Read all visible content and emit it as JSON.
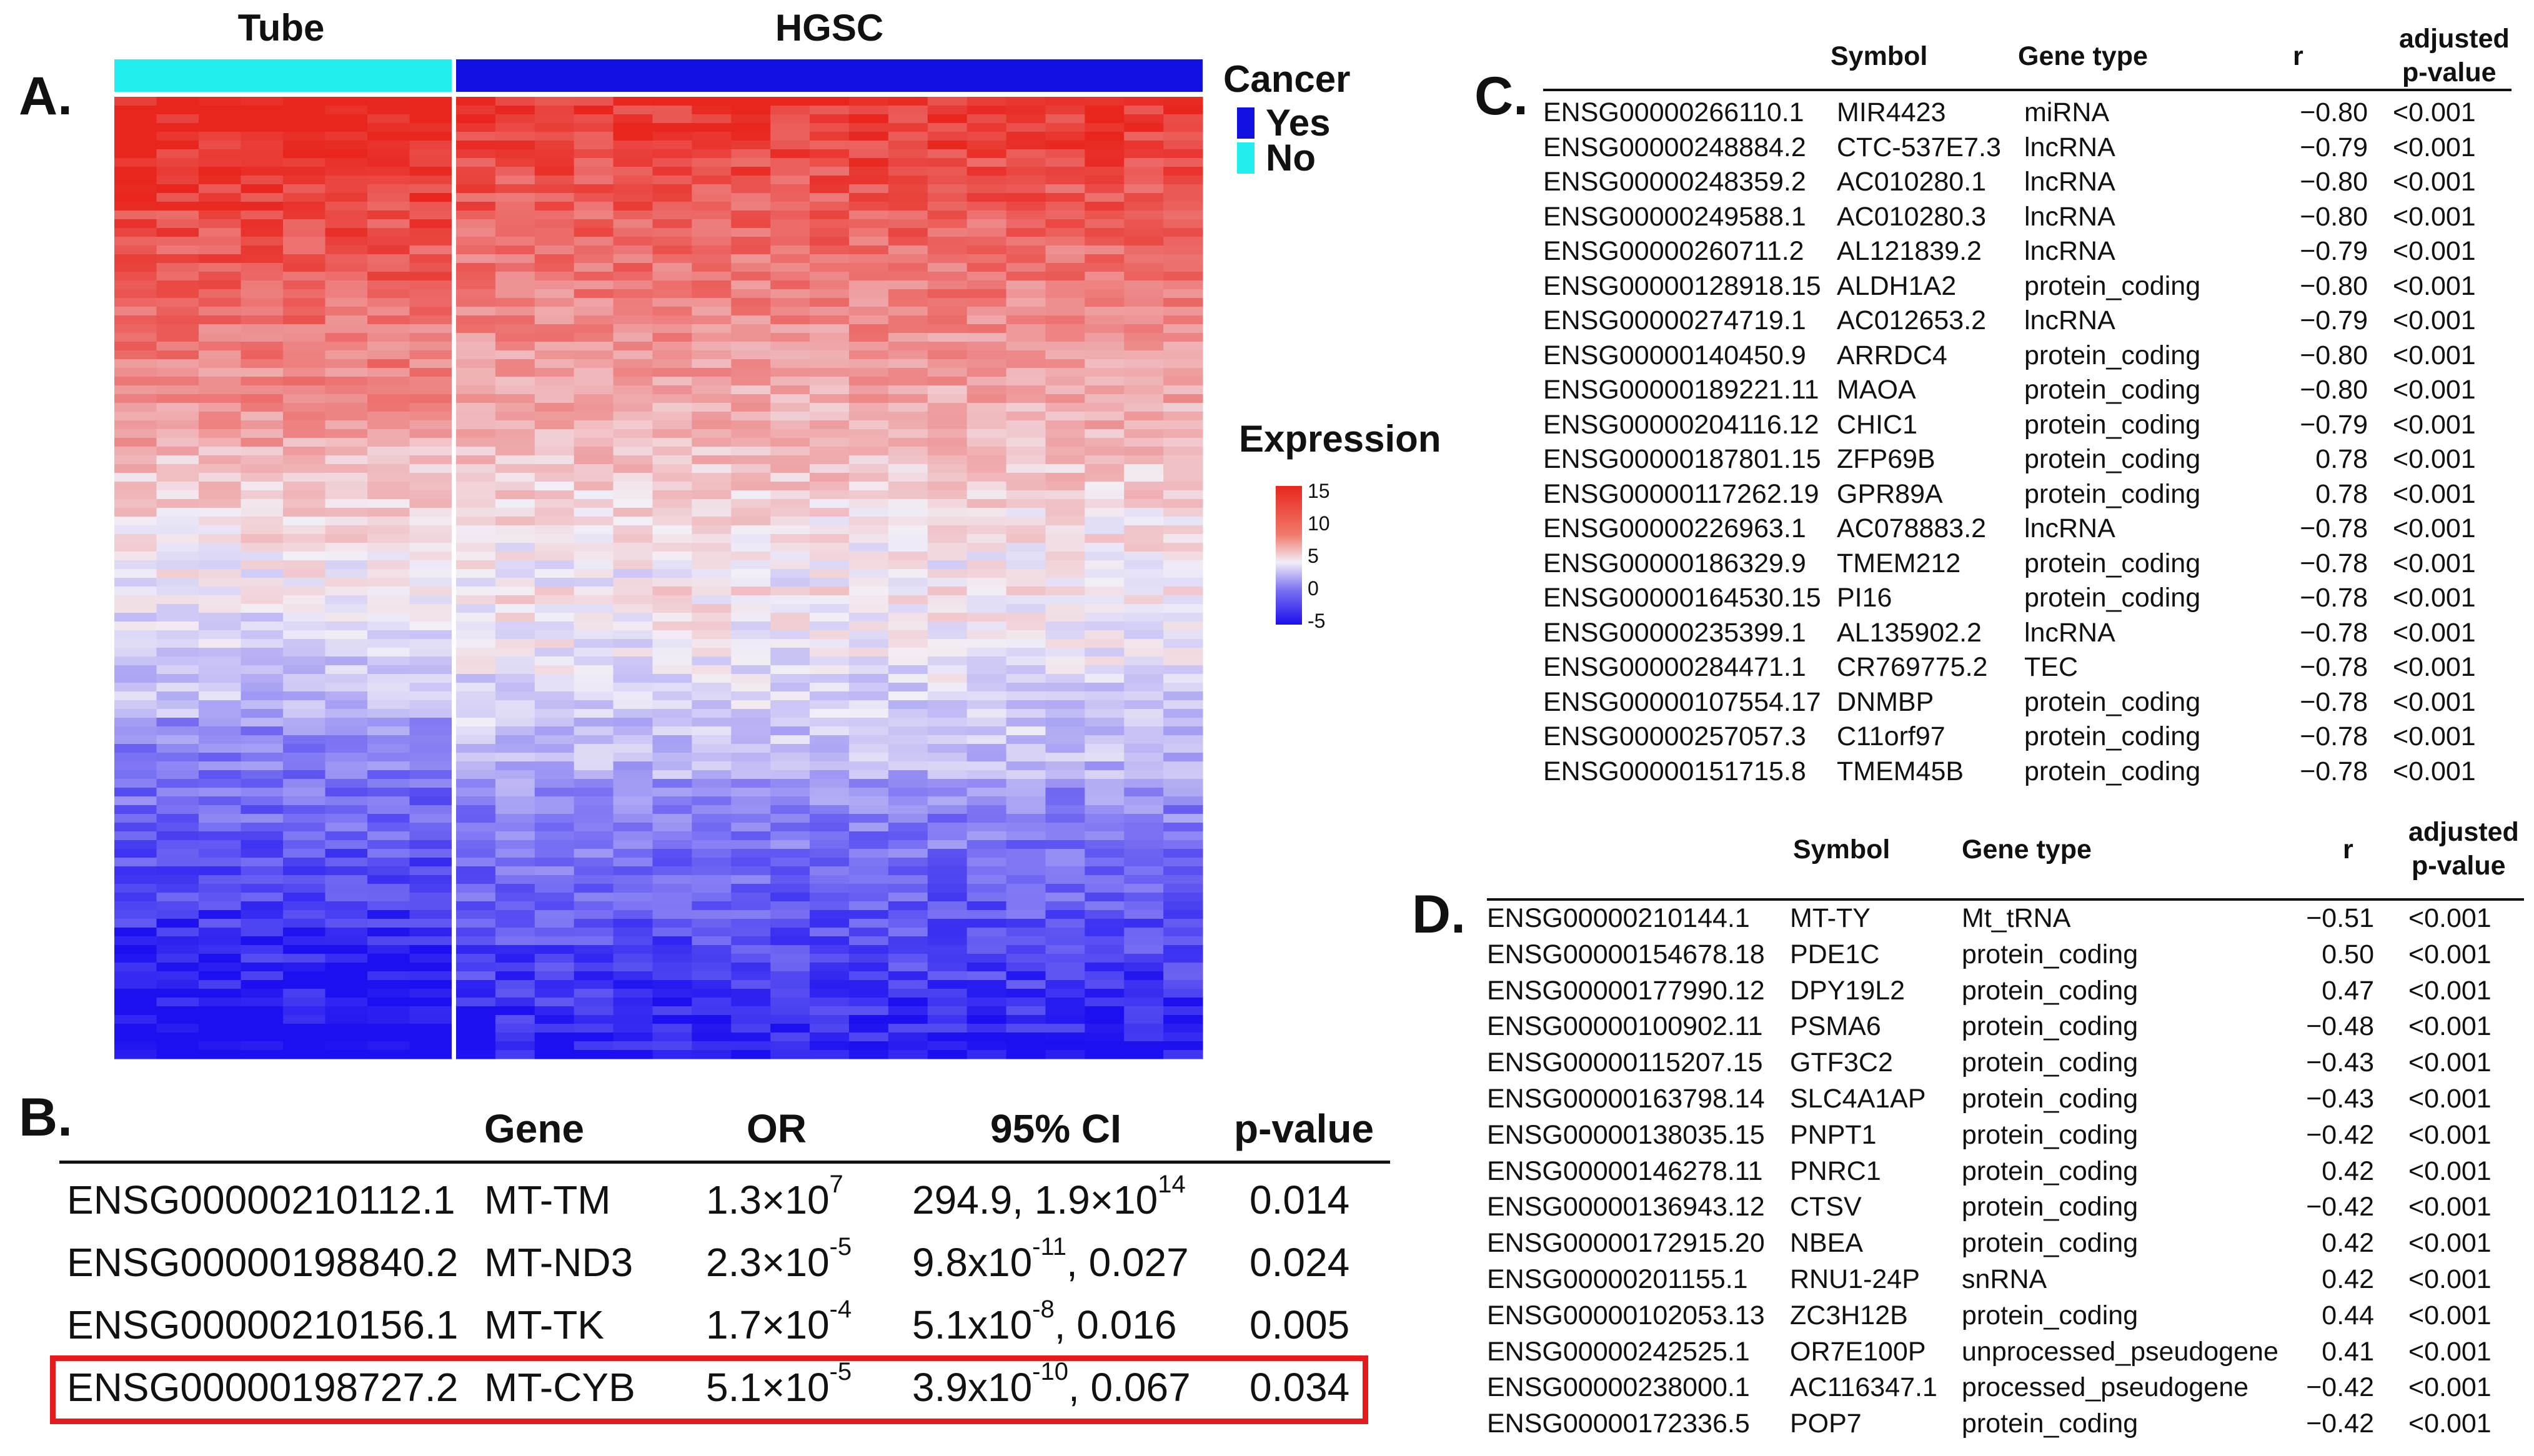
{
  "panel_a": {
    "letter": "A.",
    "group_labels": {
      "tube": "Tube",
      "hgsc": "HGSC"
    },
    "legend_cancer": {
      "title": "Cancer",
      "entries": [
        {
          "label": "Yes",
          "color": "#1010e0"
        },
        {
          "label": "No",
          "color": "#22eef0"
        }
      ]
    },
    "legend_expression": {
      "title": "Expression",
      "ticks": [
        "15",
        "10",
        "5",
        "0",
        "-5"
      ]
    },
    "heatmap": {
      "tube_columns": 8,
      "hgsc_columns": 19,
      "color_high": "#e8261e",
      "color_mid": "#f2eef6",
      "color_low": "#1c10f0"
    }
  },
  "panel_b": {
    "letter": "B.",
    "headers": {
      "gene": "Gene",
      "or": "OR",
      "ci": "95% CI",
      "pvalue": "p-value"
    },
    "rows": [
      {
        "id": "ENSG00000210112.1",
        "gene": "MT-TM",
        "or_base": "1.3×10",
        "or_exp": "7",
        "ci_base": "294.9, 1.9×10",
        "ci_exp": "14",
        "ci_tail": "",
        "pvalue": "0.014"
      },
      {
        "id": "ENSG00000198840.2",
        "gene": "MT-ND3",
        "or_base": "2.3×10",
        "or_exp": "-5",
        "ci_base": "9.8x10",
        "ci_exp": "-11",
        "ci_tail": ", 0.027",
        "pvalue": "0.024"
      },
      {
        "id": "ENSG00000210156.1",
        "gene": "MT-TK",
        "or_base": "1.7×10",
        "or_exp": "-4",
        "ci_base": "5.1x10",
        "ci_exp": "-8",
        "ci_tail": ", 0.016",
        "pvalue": "0.005"
      },
      {
        "id": "ENSG00000198727.2",
        "gene": "MT-CYB",
        "or_base": "5.1×10",
        "or_exp": "-5",
        "ci_base": "3.9x10",
        "ci_exp": "-10",
        "ci_tail": ", 0.067",
        "pvalue": "0.034"
      }
    ],
    "highlight_color": "#e41a1c"
  },
  "panel_c": {
    "letter": "C.",
    "headers": {
      "symbol": "Symbol",
      "gene_type": "Gene type",
      "r": "r",
      "adj1": "adjusted",
      "adj2": "p-value"
    },
    "rows": [
      [
        "ENSG00000266110.1",
        "MIR4423",
        "miRNA",
        "−0.80",
        "<0.001"
      ],
      [
        "ENSG00000248884.2",
        "CTC-537E7.3",
        "lncRNA",
        "−0.79",
        "<0.001"
      ],
      [
        "ENSG00000248359.2",
        "AC010280.1",
        "lncRNA",
        "−0.80",
        "<0.001"
      ],
      [
        "ENSG00000249588.1",
        "AC010280.3",
        "lncRNA",
        "−0.80",
        "<0.001"
      ],
      [
        "ENSG00000260711.2",
        "AL121839.2",
        "lncRNA",
        "−0.79",
        "<0.001"
      ],
      [
        "ENSG00000128918.15",
        "ALDH1A2",
        "protein_coding",
        "−0.80",
        "<0.001"
      ],
      [
        "ENSG00000274719.1",
        "AC012653.2",
        "lncRNA",
        "−0.79",
        "<0.001"
      ],
      [
        "ENSG00000140450.9",
        "ARRDC4",
        "protein_coding",
        "−0.80",
        "<0.001"
      ],
      [
        "ENSG00000189221.11",
        "MAOA",
        "protein_coding",
        "−0.80",
        "<0.001"
      ],
      [
        "ENSG00000204116.12",
        "CHIC1",
        "protein_coding",
        "−0.79",
        "<0.001"
      ],
      [
        "ENSG00000187801.15",
        "ZFP69B",
        "protein_coding",
        "0.78",
        "<0.001"
      ],
      [
        "ENSG00000117262.19",
        "GPR89A",
        "protein_coding",
        "0.78",
        "<0.001"
      ],
      [
        "ENSG00000226963.1",
        "AC078883.2",
        "lncRNA",
        "−0.78",
        "<0.001"
      ],
      [
        "ENSG00000186329.9",
        "TMEM212",
        "protein_coding",
        "−0.78",
        "<0.001"
      ],
      [
        "ENSG00000164530.15",
        "PI16",
        "protein_coding",
        "−0.78",
        "<0.001"
      ],
      [
        "ENSG00000235399.1",
        "AL135902.2",
        "lncRNA",
        "−0.78",
        "<0.001"
      ],
      [
        "ENSG00000284471.1",
        "CR769775.2",
        "TEC",
        "−0.78",
        "<0.001"
      ],
      [
        "ENSG00000107554.17",
        "DNMBP",
        "protein_coding",
        "−0.78",
        "<0.001"
      ],
      [
        "ENSG00000257057.3",
        "C11orf97",
        "protein_coding",
        "−0.78",
        "<0.001"
      ],
      [
        "ENSG00000151715.8",
        "TMEM45B",
        "protein_coding",
        "−0.78",
        "<0.001"
      ]
    ]
  },
  "panel_d": {
    "letter": "D.",
    "headers": {
      "symbol": "Symbol",
      "gene_type": "Gene type",
      "r": "r",
      "adj1": "adjusted",
      "adj2": "p-value"
    },
    "rows": [
      [
        "ENSG00000210144.1",
        "MT-TY",
        "Mt_tRNA",
        "−0.51",
        "<0.001"
      ],
      [
        "ENSG00000154678.18",
        "PDE1C",
        "protein_coding",
        "0.50",
        "<0.001"
      ],
      [
        "ENSG00000177990.12",
        "DPY19L2",
        "protein_coding",
        "0.47",
        "<0.001"
      ],
      [
        "ENSG00000100902.11",
        "PSMA6",
        "protein_coding",
        "−0.48",
        "<0.001"
      ],
      [
        "ENSG00000115207.15",
        "GTF3C2",
        "protein_coding",
        "−0.43",
        "<0.001"
      ],
      [
        "ENSG00000163798.14",
        "SLC4A1AP",
        "protein_coding",
        "−0.43",
        "<0.001"
      ],
      [
        "ENSG00000138035.15",
        "PNPT1",
        "protein_coding",
        "−0.42",
        "<0.001"
      ],
      [
        "ENSG00000146278.11",
        "PNRC1",
        "protein_coding",
        "0.42",
        "<0.001"
      ],
      [
        "ENSG00000136943.12",
        "CTSV",
        "protein_coding",
        "−0.42",
        "<0.001"
      ],
      [
        "ENSG00000172915.20",
        "NBEA",
        "protein_coding",
        "0.42",
        "<0.001"
      ],
      [
        "ENSG00000201155.1",
        "RNU1-24P",
        "snRNA",
        "0.42",
        "<0.001"
      ],
      [
        "ENSG00000102053.13",
        "ZC3H12B",
        "protein_coding",
        "0.44",
        "<0.001"
      ],
      [
        "ENSG00000242525.1",
        "OR7E100P",
        "unprocessed_pseudogene",
        "0.41",
        "<0.001"
      ],
      [
        "ENSG00000238000.1",
        "AC116347.1",
        "processed_pseudogene",
        "−0.42",
        "<0.001"
      ],
      [
        "ENSG00000172336.5",
        "POP7",
        "protein_coding",
        "−0.42",
        "<0.001"
      ]
    ]
  }
}
